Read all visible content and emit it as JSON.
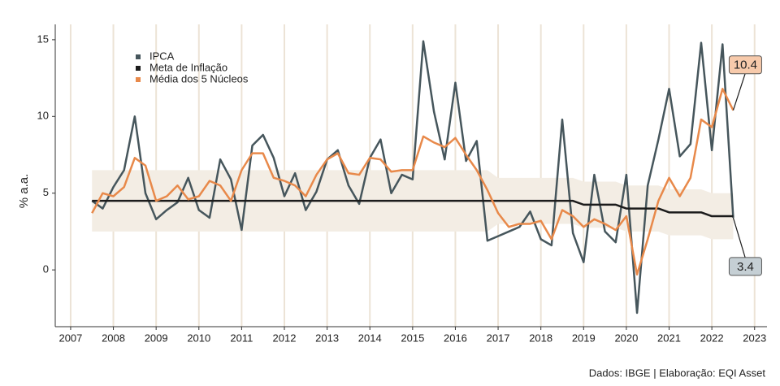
{
  "chart_data": {
    "type": "line",
    "y_label": "% a.a.",
    "caption": "Dados: IBGE | Elaboração: EQI Asset",
    "x": [
      2007.5,
      2007.75,
      2008.0,
      2008.25,
      2008.5,
      2008.75,
      2009.0,
      2009.25,
      2009.5,
      2009.75,
      2010.0,
      2010.25,
      2010.5,
      2010.75,
      2011.0,
      2011.25,
      2011.5,
      2011.75,
      2012.0,
      2012.25,
      2012.5,
      2012.75,
      2013.0,
      2013.25,
      2013.5,
      2013.75,
      2014.0,
      2014.25,
      2014.5,
      2014.75,
      2015.0,
      2015.25,
      2015.5,
      2015.75,
      2016.0,
      2016.25,
      2016.5,
      2016.75,
      2017.0,
      2017.25,
      2017.5,
      2017.75,
      2018.0,
      2018.25,
      2018.5,
      2018.75,
      2019.0,
      2019.25,
      2019.5,
      2019.75,
      2020.0,
      2020.25,
      2020.5,
      2020.75,
      2021.0,
      2021.25,
      2021.5,
      2021.75,
      2022.0,
      2022.25,
      2022.5
    ],
    "band": {
      "color": "#f3ede4",
      "lower": [
        2.5,
        2.5,
        2.5,
        2.5,
        2.5,
        2.5,
        2.5,
        2.5,
        2.5,
        2.5,
        2.5,
        2.5,
        2.5,
        2.5,
        2.5,
        2.5,
        2.5,
        2.5,
        2.5,
        2.5,
        2.5,
        2.5,
        2.5,
        2.5,
        2.5,
        2.5,
        2.5,
        2.5,
        2.5,
        2.5,
        2.5,
        2.5,
        2.5,
        2.5,
        2.5,
        2.5,
        2.5,
        2.5,
        3.0,
        3.0,
        3.0,
        3.0,
        3.0,
        3.0,
        3.0,
        3.0,
        2.75,
        2.75,
        2.75,
        2.75,
        2.5,
        2.5,
        2.5,
        2.5,
        2.25,
        2.25,
        2.25,
        2.25,
        2.0,
        2.0,
        2.0
      ],
      "upper": [
        6.5,
        6.5,
        6.5,
        6.5,
        6.5,
        6.5,
        6.5,
        6.5,
        6.5,
        6.5,
        6.5,
        6.5,
        6.5,
        6.5,
        6.5,
        6.5,
        6.5,
        6.5,
        6.5,
        6.5,
        6.5,
        6.5,
        6.5,
        6.5,
        6.5,
        6.5,
        6.5,
        6.5,
        6.5,
        6.5,
        6.5,
        6.5,
        6.5,
        6.5,
        6.5,
        6.5,
        6.5,
        6.5,
        6.0,
        6.0,
        6.0,
        6.0,
        6.0,
        6.0,
        6.0,
        6.0,
        5.75,
        5.75,
        5.75,
        5.75,
        5.5,
        5.5,
        5.5,
        5.5,
        5.25,
        5.25,
        5.25,
        5.25,
        5.0,
        5.0,
        5.0
      ]
    },
    "series": [
      {
        "name": "IPCA",
        "color": "#46565c",
        "end_label": true,
        "label_fill": "#c5cfd4",
        "values": [
          4.5,
          4.0,
          5.4,
          6.5,
          10.0,
          5.0,
          3.3,
          3.9,
          4.4,
          6.0,
          3.9,
          3.4,
          7.2,
          5.9,
          2.6,
          8.1,
          8.8,
          7.3,
          4.8,
          6.3,
          3.9,
          5.1,
          7.2,
          7.8,
          5.5,
          4.3,
          7.3,
          8.5,
          5.0,
          6.2,
          5.9,
          14.9,
          10.3,
          7.2,
          12.2,
          7.1,
          8.4,
          1.9,
          2.2,
          2.5,
          2.8,
          3.8,
          2.0,
          1.6,
          9.8,
          2.4,
          0.5,
          6.2,
          2.5,
          1.8,
          6.2,
          -2.8,
          5.5,
          8.5,
          11.8,
          7.4,
          8.2,
          14.8,
          7.8,
          14.7,
          3.4
        ]
      },
      {
        "name": "Meta de Inflação",
        "color": "#1c1c1c",
        "end_label": false,
        "values": [
          4.5,
          4.5,
          4.5,
          4.5,
          4.5,
          4.5,
          4.5,
          4.5,
          4.5,
          4.5,
          4.5,
          4.5,
          4.5,
          4.5,
          4.5,
          4.5,
          4.5,
          4.5,
          4.5,
          4.5,
          4.5,
          4.5,
          4.5,
          4.5,
          4.5,
          4.5,
          4.5,
          4.5,
          4.5,
          4.5,
          4.5,
          4.5,
          4.5,
          4.5,
          4.5,
          4.5,
          4.5,
          4.5,
          4.5,
          4.5,
          4.5,
          4.5,
          4.5,
          4.5,
          4.5,
          4.5,
          4.25,
          4.25,
          4.25,
          4.25,
          4.0,
          4.0,
          4.0,
          4.0,
          3.75,
          3.75,
          3.75,
          3.75,
          3.5,
          3.5,
          3.5
        ]
      },
      {
        "name": "Média dos 5 Núcleos",
        "color": "#e8894a",
        "end_label": true,
        "label_fill": "#f7caab",
        "values": [
          3.7,
          5.0,
          4.8,
          5.4,
          7.3,
          6.8,
          4.5,
          4.8,
          5.5,
          4.6,
          4.8,
          5.8,
          5.5,
          4.5,
          6.5,
          7.6,
          7.6,
          6.0,
          5.8,
          5.5,
          4.8,
          6.2,
          7.2,
          7.6,
          6.3,
          6.2,
          7.3,
          7.2,
          6.4,
          6.5,
          6.5,
          8.7,
          8.3,
          8.0,
          8.6,
          7.5,
          6.5,
          5.2,
          3.7,
          2.8,
          3.0,
          3.0,
          3.2,
          2.0,
          3.9,
          3.5,
          2.8,
          3.3,
          3.0,
          2.6,
          3.5,
          -0.3,
          2.0,
          4.5,
          6.0,
          4.8,
          6.0,
          9.8,
          9.3,
          11.8,
          10.4
        ]
      }
    ],
    "xlim": [
      2006.64,
      2023.29
    ],
    "xticks": [
      2007,
      2008,
      2009,
      2010,
      2011,
      2012,
      2013,
      2014,
      2015,
      2016,
      2017,
      2018,
      2019,
      2020,
      2021,
      2022,
      2023
    ],
    "ylim": [
      -3.7,
      16.0
    ],
    "yticks": [
      0,
      5,
      10,
      15
    ],
    "grid": true,
    "grid_color": "#ece3d6"
  }
}
